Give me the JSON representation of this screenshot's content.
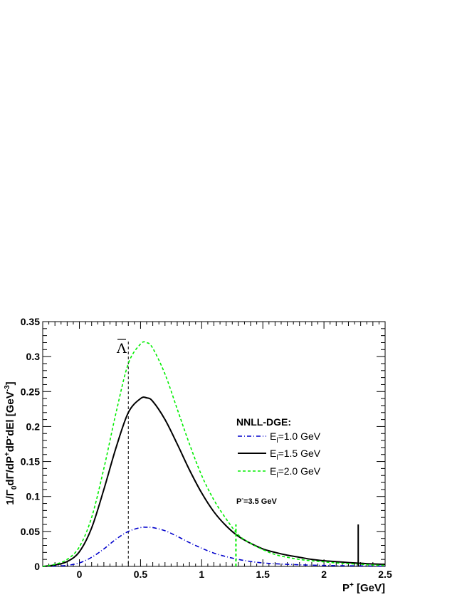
{
  "chart_data": {
    "type": "line",
    "title": "",
    "xlabel": "P⁺ [GeV]",
    "ylabel": "1/Γ₀dΓ/dP⁺dP⁻dEl [GeV⁻³]",
    "xlim": [
      -0.3,
      2.5
    ],
    "ylim": [
      0,
      0.35
    ],
    "xticks": [
      0,
      0.5,
      1,
      1.5,
      2,
      2.5
    ],
    "xtick_labels": [
      "0",
      "0.5",
      "1",
      "1.5",
      "2",
      "2.5"
    ],
    "yticks": [
      0,
      0.05,
      0.1,
      0.15,
      0.2,
      0.25,
      0.3,
      0.35
    ],
    "ytick_labels": [
      "0",
      "0.05",
      "0.1",
      "0.15",
      "0.2",
      "0.25",
      "0.3",
      "0.35"
    ],
    "grid": false,
    "legend": {
      "title": "NNLL-DGE:",
      "placement": "right",
      "entries": [
        "E_l=1.0 GeV",
        "E_l=1.5 GeV",
        "E_l=2.0 GeV"
      ]
    },
    "annotation": "P⁻=3.5 GeV",
    "lambda_bar": {
      "label": "Λ",
      "x": 0.4
    },
    "x": [
      -0.3,
      -0.2,
      -0.1,
      0,
      0.1,
      0.2,
      0.3,
      0.4,
      0.5,
      0.55,
      0.6,
      0.7,
      0.8,
      0.9,
      1.0,
      1.1,
      1.2,
      1.3,
      1.4,
      1.5,
      1.6,
      1.7,
      1.8,
      1.9,
      2.0,
      2.1,
      2.2,
      2.3,
      2.4,
      2.5
    ],
    "series": [
      {
        "name": "E_l=1.0 GeV",
        "style": "dashdot",
        "color": "#0000cc",
        "values": [
          0,
          0.0005,
          0.0015,
          0.005,
          0.013,
          0.025,
          0.039,
          0.05,
          0.0555,
          0.056,
          0.0555,
          0.051,
          0.043,
          0.034,
          0.026,
          0.019,
          0.014,
          0.01,
          0.007,
          0.005,
          0.0038,
          0.003,
          0.0023,
          0.0018,
          0.0014,
          0.0011,
          0.0009,
          0.0007,
          0.0005,
          0.0004
        ]
      },
      {
        "name": "E_l=1.5 GeV",
        "style": "solid",
        "color": "#000000",
        "values": [
          0,
          0.002,
          0.007,
          0.021,
          0.055,
          0.11,
          0.17,
          0.22,
          0.24,
          0.241,
          0.236,
          0.21,
          0.175,
          0.138,
          0.105,
          0.078,
          0.058,
          0.043,
          0.033,
          0.025,
          0.02,
          0.016,
          0.013,
          0.01,
          0.008,
          0.0068,
          0.0055,
          0.0045,
          0.0035,
          0.003
        ]
      },
      {
        "name": "E_l=2.0 GeV",
        "style": "dashed",
        "color": "#00ee00",
        "values": [
          0,
          0.003,
          0.01,
          0.028,
          0.07,
          0.14,
          0.22,
          0.29,
          0.318,
          0.32,
          0.312,
          0.275,
          0.225,
          0.175,
          0.13,
          0.095,
          0.068,
          0.045,
          0.033,
          0.024,
          0.017,
          0.013,
          0.01,
          0.008,
          0.0065,
          0.005,
          0.004,
          0.003,
          0.002,
          0.0015
        ]
      }
    ],
    "endpoint_markers": [
      {
        "x": 1.28,
        "y": 0.06,
        "color": "#00ee00",
        "style": "dashed"
      },
      {
        "x": 2.28,
        "y": 0.06,
        "color": "#000000",
        "style": "solid"
      }
    ]
  }
}
